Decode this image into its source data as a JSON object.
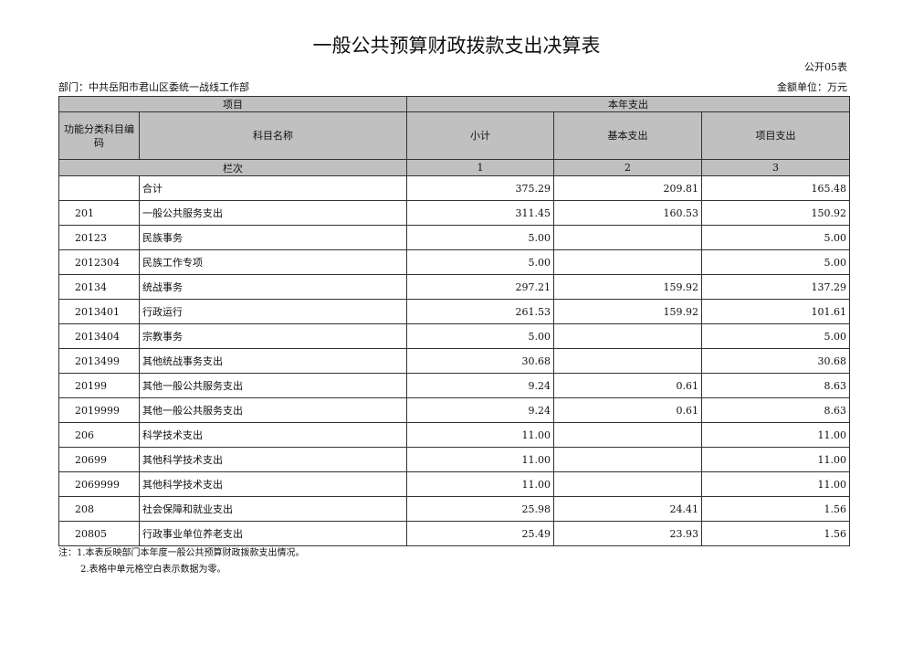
{
  "title": "一般公共预算财政拨款支出决算表",
  "form_no": "公开05表",
  "department": "部门：中共岳阳市君山区委统一战线工作部",
  "unit": "金额单位：万元",
  "header": {
    "project": "项目",
    "current_year": "本年支出",
    "code": "功能分类科目编码",
    "name": "科目名称",
    "subtotal": "小计",
    "basic": "基本支出",
    "program": "项目支出",
    "column_index": "栏次",
    "col1": "1",
    "col2": "2",
    "col3": "3"
  },
  "rows": [
    {
      "code": "",
      "name": "合计",
      "subtotal": "375.29",
      "basic": "209.81",
      "program": "165.48"
    },
    {
      "code": "201",
      "name": "一般公共服务支出",
      "subtotal": "311.45",
      "basic": "160.53",
      "program": "150.92"
    },
    {
      "code": "20123",
      "name": "民族事务",
      "subtotal": "5.00",
      "basic": "",
      "program": "5.00"
    },
    {
      "code": "2012304",
      "name": "民族工作专项",
      "subtotal": "5.00",
      "basic": "",
      "program": "5.00"
    },
    {
      "code": "20134",
      "name": "统战事务",
      "subtotal": "297.21",
      "basic": "159.92",
      "program": "137.29"
    },
    {
      "code": "2013401",
      "name": "行政运行",
      "subtotal": "261.53",
      "basic": "159.92",
      "program": "101.61"
    },
    {
      "code": "2013404",
      "name": "宗教事务",
      "subtotal": "5.00",
      "basic": "",
      "program": "5.00"
    },
    {
      "code": "2013499",
      "name": "其他统战事务支出",
      "subtotal": "30.68",
      "basic": "",
      "program": "30.68"
    },
    {
      "code": "20199",
      "name": "其他一般公共服务支出",
      "subtotal": "9.24",
      "basic": "0.61",
      "program": "8.63"
    },
    {
      "code": "2019999",
      "name": "其他一般公共服务支出",
      "subtotal": "9.24",
      "basic": "0.61",
      "program": "8.63"
    },
    {
      "code": "206",
      "name": "科学技术支出",
      "subtotal": "11.00",
      "basic": "",
      "program": "11.00"
    },
    {
      "code": "20699",
      "name": "其他科学技术支出",
      "subtotal": "11.00",
      "basic": "",
      "program": "11.00"
    },
    {
      "code": "2069999",
      "name": "其他科学技术支出",
      "subtotal": "11.00",
      "basic": "",
      "program": "11.00"
    },
    {
      "code": "208",
      "name": "社会保障和就业支出",
      "subtotal": "25.98",
      "basic": "24.41",
      "program": "1.56"
    },
    {
      "code": "20805",
      "name": "行政事业单位养老支出",
      "subtotal": "25.49",
      "basic": "23.93",
      "program": "1.56"
    }
  ],
  "notes": [
    "注：1.本表反映部门本年度一般公共预算财政拨款支出情况。",
    "2.表格中单元格空白表示数据为零。"
  ]
}
